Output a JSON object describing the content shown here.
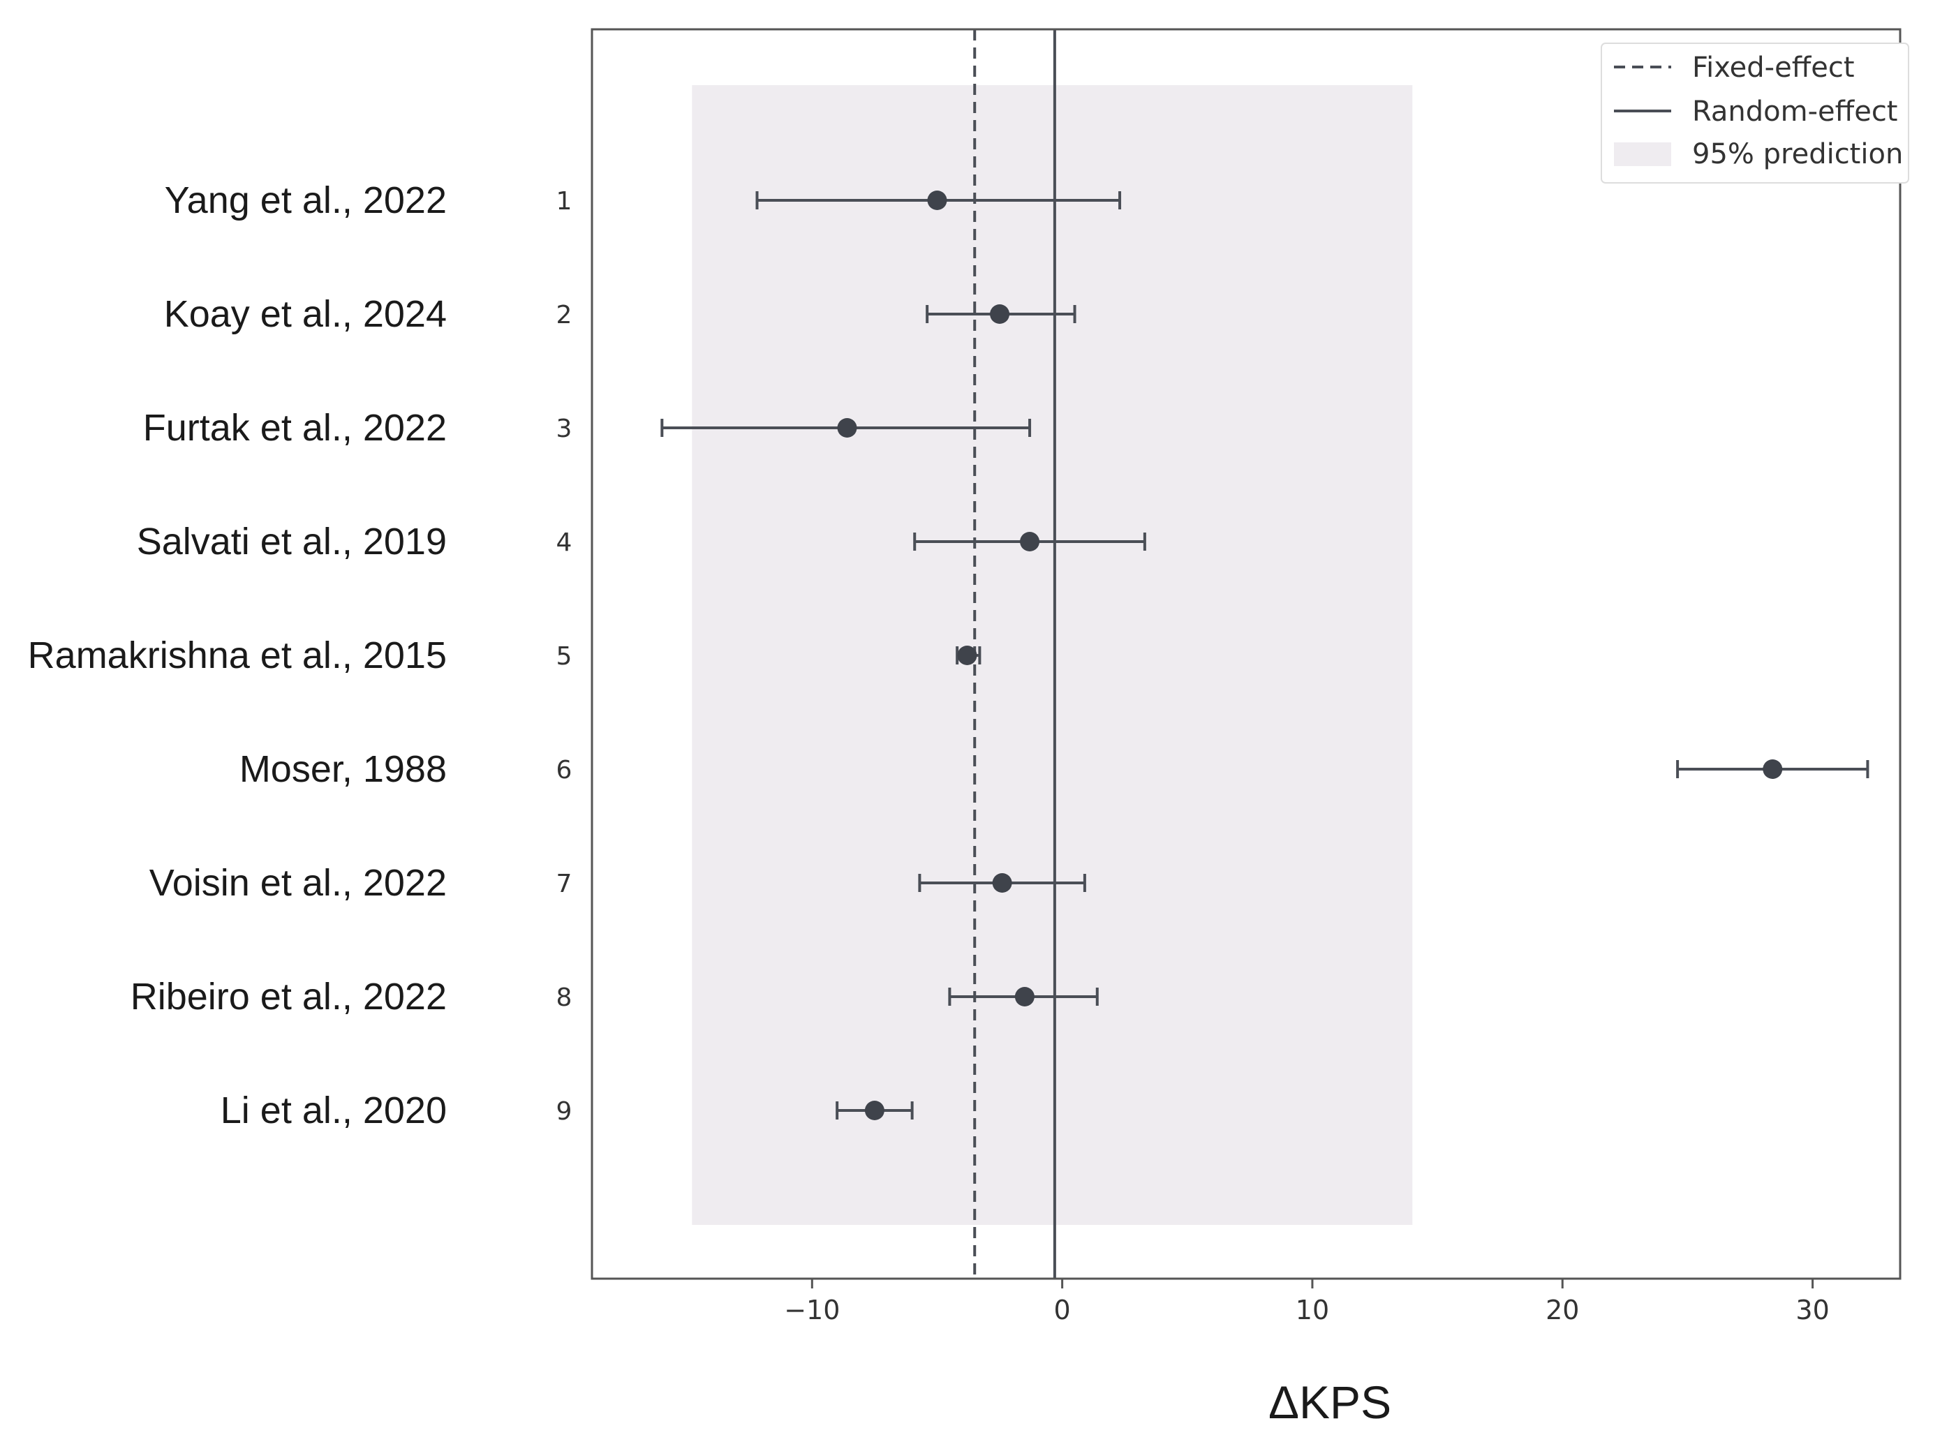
{
  "chart_data": {
    "type": "forest",
    "xlabel": "ΔKPS",
    "xlim": [
      -18.8,
      33.5
    ],
    "xticks": [
      -10,
      0,
      10,
      20,
      30
    ],
    "xtick_labels": [
      "−10",
      "0",
      "10",
      "20",
      "30"
    ],
    "studies": [
      {
        "index": "1",
        "label": "Yang et al., 2022",
        "estimate": -5.0,
        "ci_low": -12.2,
        "ci_high": 2.3
      },
      {
        "index": "2",
        "label": "Koay et al., 2024",
        "estimate": -2.5,
        "ci_low": -5.4,
        "ci_high": 0.5
      },
      {
        "index": "3",
        "label": "Furtak et al., 2022",
        "estimate": -8.6,
        "ci_low": -16.0,
        "ci_high": -1.3
      },
      {
        "index": "4",
        "label": "Salvati et al., 2019",
        "estimate": -1.3,
        "ci_low": -5.9,
        "ci_high": 3.3
      },
      {
        "index": "5",
        "label": "Ramakrishna et al., 2015",
        "estimate": -3.8,
        "ci_low": -4.2,
        "ci_high": -3.3
      },
      {
        "index": "6",
        "label": "Moser, 1988",
        "estimate": 28.4,
        "ci_low": 24.6,
        "ci_high": 32.2
      },
      {
        "index": "7",
        "label": "Voisin et al., 2022",
        "estimate": -2.4,
        "ci_low": -5.7,
        "ci_high": 0.9
      },
      {
        "index": "8",
        "label": "Ribeiro et al., 2022",
        "estimate": -1.5,
        "ci_low": -4.5,
        "ci_high": 1.4
      },
      {
        "index": "9",
        "label": "Li et al., 2020",
        "estimate": -7.5,
        "ci_low": -9.0,
        "ci_high": -6.0
      }
    ],
    "fixed_effect": -3.5,
    "random_effect": -0.3,
    "prediction_interval": [
      -14.8,
      14.0
    ],
    "legend": {
      "position": "top-right",
      "items": [
        "Fixed-effect",
        "Random-effect",
        "95% prediction"
      ]
    },
    "colors": {
      "marker": "#3f434b",
      "line": "#4a4e56",
      "prediction_band": "#efecf0",
      "axes": "#555555"
    }
  }
}
